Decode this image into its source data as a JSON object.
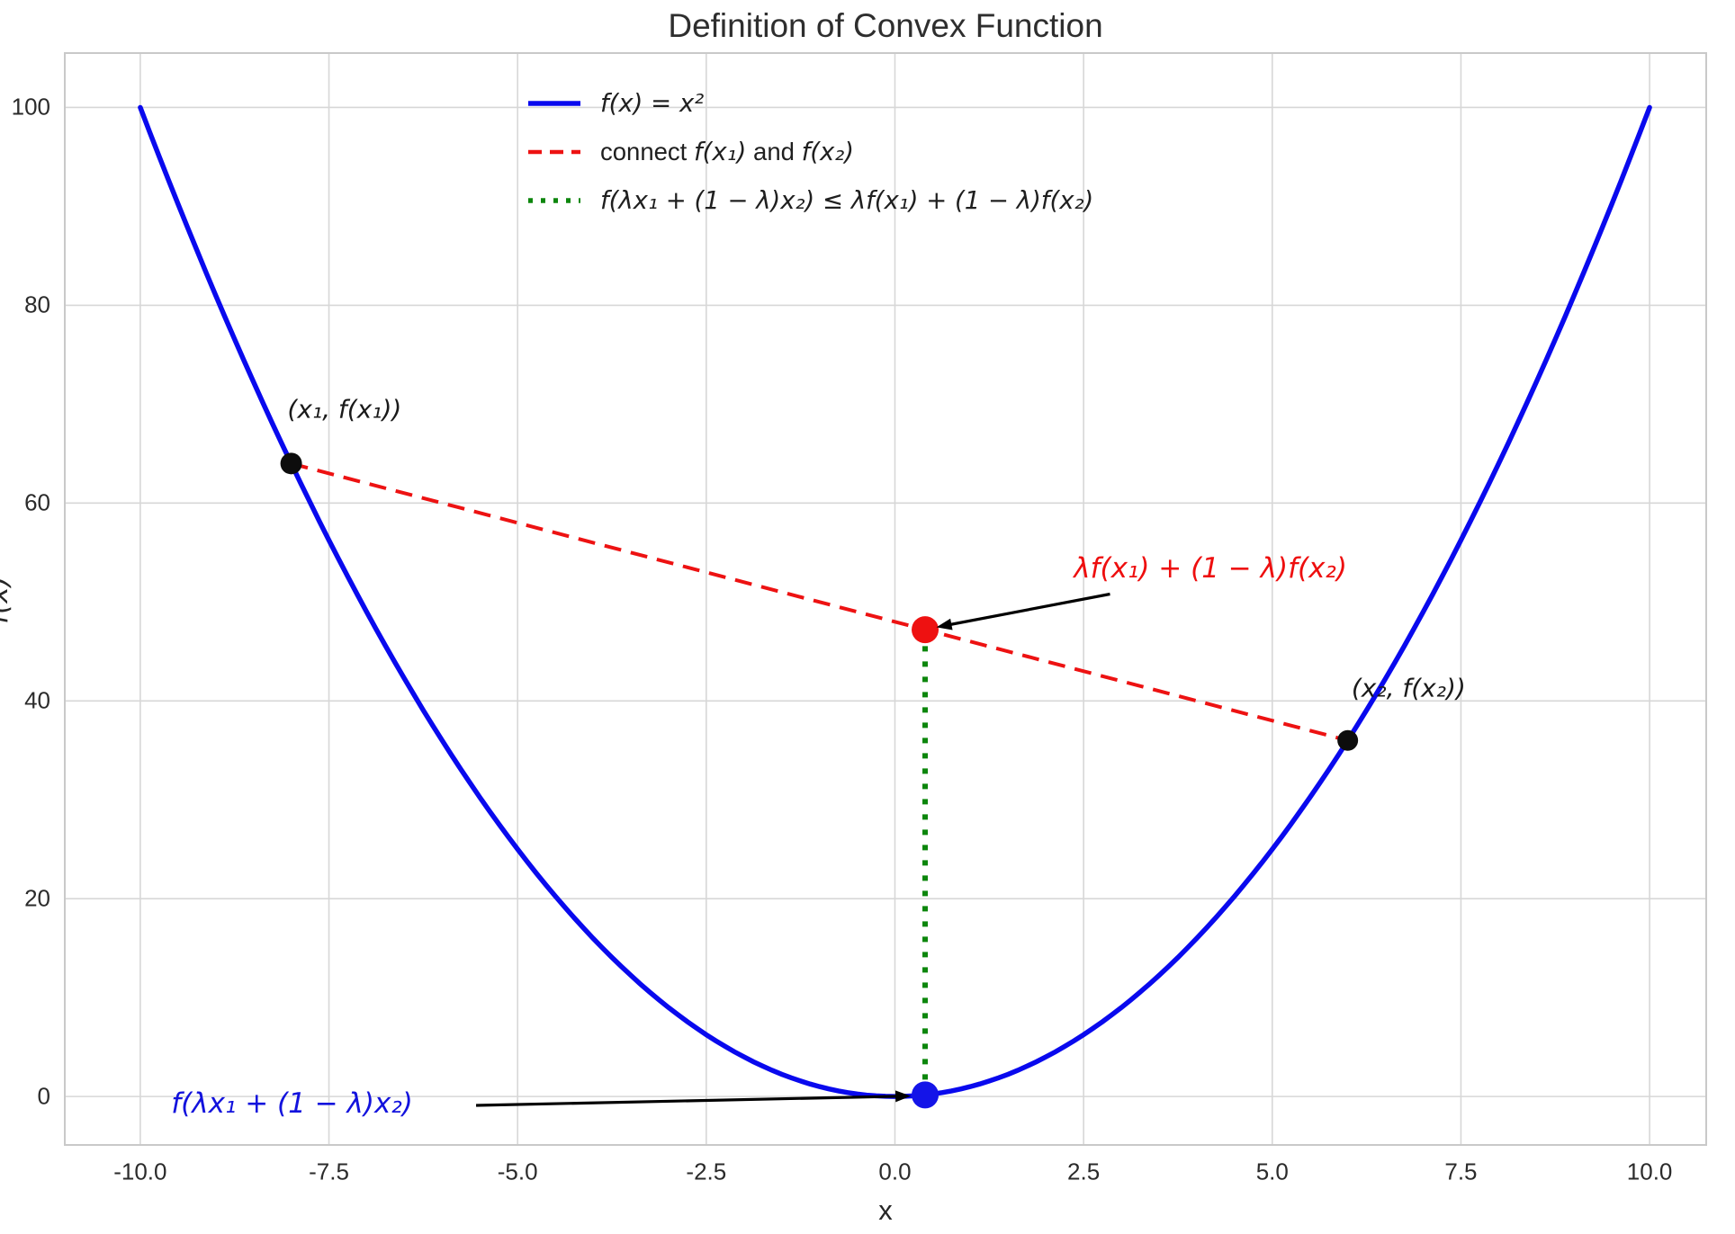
{
  "figure": {
    "title": "Definition of Convex Function",
    "xlabel": "x",
    "ylabel": "f(x)"
  },
  "chart_data": {
    "type": "line",
    "title": "Definition of Convex Function",
    "xlabel": "x",
    "ylabel": "f(x)",
    "xlim": [
      -11.0,
      10.75
    ],
    "ylim": [
      -4.9,
      105.5
    ],
    "grid": true,
    "legend_position": "upper center",
    "xticks": [
      -10.0,
      -7.5,
      -5.0,
      -2.5,
      0.0,
      2.5,
      5.0,
      7.5,
      10.0
    ],
    "xtick_labels": [
      "-10.0",
      "-7.5",
      "-5.0",
      "-2.5",
      "0.0",
      "2.5",
      "5.0",
      "7.5",
      "10.0"
    ],
    "yticks": [
      0,
      20,
      40,
      60,
      80,
      100
    ],
    "colors": {
      "curve": "#0909ee",
      "chord": "#ed1212",
      "inequality": "#0c860c",
      "marker_black": "#0d0d0d",
      "marker_red": "#ee1111",
      "marker_blue": "#1414e8",
      "grid": "#d7d7d7",
      "spine": "#c9c9c9",
      "arrow": "#000000",
      "text": "#262626"
    },
    "series": [
      {
        "name": "f(x) = x²",
        "kind": "function-curve",
        "fn": "x^2",
        "x_range": [
          -10,
          10
        ],
        "style": "solid",
        "width": 5.5
      },
      {
        "name": "connect f(x₁) and f(x₂)",
        "kind": "chord-segment",
        "points": [
          [
            -8,
            64
          ],
          [
            6,
            36
          ]
        ],
        "style": "dashed",
        "width": 4
      },
      {
        "name": "f(λx₁ + (1 − λ)x₂) ≤ λf(x₁) + (1 − λ)f(x₂)",
        "kind": "vertical-segment",
        "points": [
          [
            0.4,
            0.16
          ],
          [
            0.4,
            47.2
          ]
        ],
        "style": "dotted",
        "width": 6
      }
    ],
    "key_points": {
      "x1": -8,
      "f_x1": 64,
      "x2": 6,
      "f_x2": 36,
      "lambda": 0.4,
      "chord_combination_point": [
        0.4,
        47.2
      ],
      "function_value_point": [
        0.4,
        0.16
      ]
    },
    "markers": [
      {
        "id": "point-x1",
        "xy": [
          -8,
          64
        ],
        "color_key": "marker_black",
        "r": 12
      },
      {
        "id": "point-x2",
        "xy": [
          6,
          36
        ],
        "color_key": "marker_black",
        "r": 11.5
      },
      {
        "id": "point-chord-combination",
        "xy": [
          0.4,
          47.2
        ],
        "color_key": "marker_red",
        "r": 15
      },
      {
        "id": "point-function-value",
        "xy": [
          0.4,
          0.16
        ],
        "color_key": "marker_blue",
        "r": 15
      }
    ],
    "legend": {
      "items": [
        {
          "label": "f(x) = x²"
        },
        {
          "parts": {
            "pre": "connect ",
            "f1": "f(x₁)",
            "mid": " and ",
            "f2": "f(x₂)"
          }
        },
        {
          "label": "f(λx₁ + (1 − λ)x₂) ≤ λf(x₁) + (1 − λ)f(x₂)"
        }
      ]
    },
    "annotations": [
      {
        "text": "(x₁, f(x₁))",
        "pos": [
          -8.05,
          69.5
        ],
        "color": "#1a1a1a"
      },
      {
        "text": "(x₂, f(x₂))",
        "pos": [
          6.05,
          41.3
        ],
        "color": "#1a1a1a"
      },
      {
        "text": "λf(x₁) + (1 − λ)f(x₂)",
        "pos": [
          2.37,
          53.4
        ],
        "color": "#ee0e0e",
        "arrow": {
          "from": [
            2.85,
            50.8
          ],
          "to": [
            0.55,
            47.45
          ]
        }
      },
      {
        "text": "f(λx₁ + (1 − λ)x₂)",
        "pos": [
          -9.59,
          -0.75
        ],
        "color": "#1212dd",
        "arrow": {
          "from": [
            -5.55,
            -0.9
          ],
          "to": [
            0.21,
            0.05
          ]
        }
      }
    ]
  }
}
